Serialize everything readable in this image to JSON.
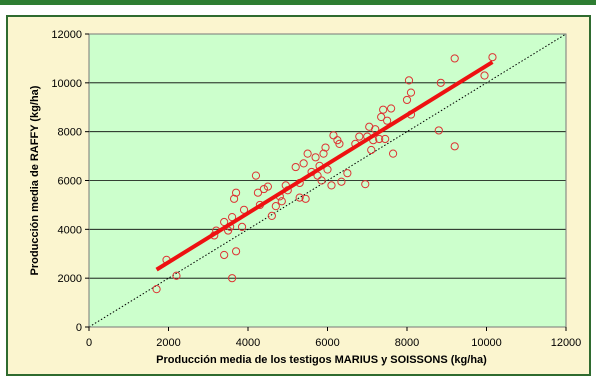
{
  "chart_data": {
    "type": "scatter",
    "xlabel": "Producción media de los testigos MARIUS y SOISSONS (kg/ha)",
    "ylabel": "Producción media de RAFFY (kg/ha)",
    "xlim": [
      0,
      12000
    ],
    "ylim": [
      0,
      12000
    ],
    "x_ticks": [
      0,
      2000,
      4000,
      6000,
      8000,
      10000,
      12000
    ],
    "y_ticks": [
      0,
      2000,
      4000,
      6000,
      8000,
      10000,
      12000
    ],
    "x_tick_labels": [
      "0",
      "2000",
      "4000",
      "6000",
      "8000",
      "10000",
      "12000"
    ],
    "y_tick_labels": [
      "0",
      "2000",
      "4000",
      "6000",
      "8000",
      "10000",
      "12000"
    ],
    "grid": "horizontal",
    "plot_background": "#ccffcc",
    "gridline_color": "#000000",
    "point_color": "#dd3333",
    "regression_line": {
      "x": [
        1700,
        10150
      ],
      "y": [
        2350,
        10850
      ],
      "color": "#ee1111"
    },
    "reference_line": {
      "x": [
        0,
        12000
      ],
      "y": [
        0,
        12000
      ],
      "style": "dotted"
    },
    "points": [
      {
        "x": 1700,
        "y": 1550
      },
      {
        "x": 1950,
        "y": 2750
      },
      {
        "x": 2200,
        "y": 2100
      },
      {
        "x": 3150,
        "y": 3750
      },
      {
        "x": 3200,
        "y": 3950
      },
      {
        "x": 3400,
        "y": 4300
      },
      {
        "x": 3400,
        "y": 2950
      },
      {
        "x": 3500,
        "y": 3950
      },
      {
        "x": 3550,
        "y": 4100
      },
      {
        "x": 3600,
        "y": 4500
      },
      {
        "x": 3600,
        "y": 2000
      },
      {
        "x": 3650,
        "y": 5250
      },
      {
        "x": 3700,
        "y": 5500
      },
      {
        "x": 3700,
        "y": 3100
      },
      {
        "x": 3850,
        "y": 4100
      },
      {
        "x": 3900,
        "y": 4800
      },
      {
        "x": 4200,
        "y": 6200
      },
      {
        "x": 4250,
        "y": 5500
      },
      {
        "x": 4300,
        "y": 5000
      },
      {
        "x": 4400,
        "y": 5650
      },
      {
        "x": 4500,
        "y": 5750
      },
      {
        "x": 4600,
        "y": 4550
      },
      {
        "x": 4700,
        "y": 4950
      },
      {
        "x": 4800,
        "y": 5350
      },
      {
        "x": 4850,
        "y": 5150
      },
      {
        "x": 4950,
        "y": 5800
      },
      {
        "x": 5000,
        "y": 5600
      },
      {
        "x": 5200,
        "y": 6550
      },
      {
        "x": 5300,
        "y": 5300
      },
      {
        "x": 5300,
        "y": 5900
      },
      {
        "x": 5400,
        "y": 6700
      },
      {
        "x": 5450,
        "y": 5250
      },
      {
        "x": 5500,
        "y": 7100
      },
      {
        "x": 5600,
        "y": 6350
      },
      {
        "x": 5700,
        "y": 6950
      },
      {
        "x": 5750,
        "y": 6200
      },
      {
        "x": 5800,
        "y": 6600
      },
      {
        "x": 5850,
        "y": 6000
      },
      {
        "x": 5900,
        "y": 7100
      },
      {
        "x": 5950,
        "y": 7350
      },
      {
        "x": 6000,
        "y": 6450
      },
      {
        "x": 6100,
        "y": 5800
      },
      {
        "x": 6150,
        "y": 7850
      },
      {
        "x": 6250,
        "y": 7650
      },
      {
        "x": 6300,
        "y": 7500
      },
      {
        "x": 6350,
        "y": 5950
      },
      {
        "x": 6500,
        "y": 6300
      },
      {
        "x": 6700,
        "y": 7500
      },
      {
        "x": 6800,
        "y": 7800
      },
      {
        "x": 6950,
        "y": 5850
      },
      {
        "x": 7000,
        "y": 7800
      },
      {
        "x": 7050,
        "y": 8200
      },
      {
        "x": 7100,
        "y": 7250
      },
      {
        "x": 7150,
        "y": 7650
      },
      {
        "x": 7200,
        "y": 8100
      },
      {
        "x": 7300,
        "y": 7700
      },
      {
        "x": 7350,
        "y": 8600
      },
      {
        "x": 7400,
        "y": 8900
      },
      {
        "x": 7450,
        "y": 7700
      },
      {
        "x": 7500,
        "y": 8450
      },
      {
        "x": 7600,
        "y": 8950
      },
      {
        "x": 7650,
        "y": 7100
      },
      {
        "x": 8000,
        "y": 9300
      },
      {
        "x": 8050,
        "y": 10100
      },
      {
        "x": 8100,
        "y": 9600
      },
      {
        "x": 8100,
        "y": 8700
      },
      {
        "x": 8800,
        "y": 8050
      },
      {
        "x": 8850,
        "y": 10000
      },
      {
        "x": 9200,
        "y": 11000
      },
      {
        "x": 9200,
        "y": 7400
      },
      {
        "x": 9950,
        "y": 10300
      },
      {
        "x": 10150,
        "y": 11050
      }
    ]
  }
}
